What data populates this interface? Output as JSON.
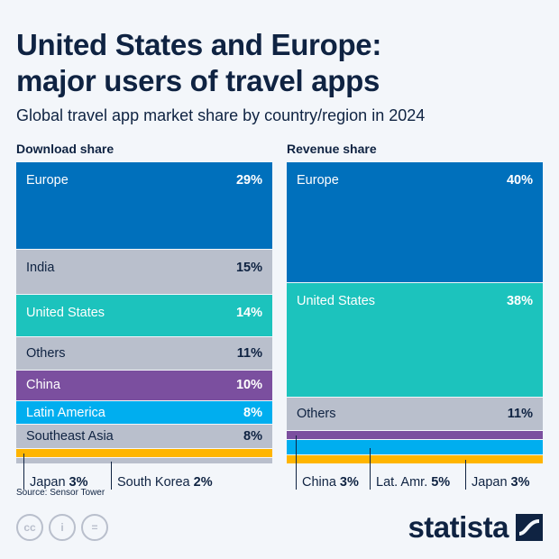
{
  "title_line1": "United States and Europe:",
  "title_line2": "major users of travel apps",
  "subtitle": "Global travel app market share by country/region in 2024",
  "source": "Source: Sensor Tower",
  "brand": "statista",
  "license_icons": [
    "cc-icon",
    "attribution-icon",
    "no-derivatives-icon"
  ],
  "colors": {
    "europe": "#0070bc",
    "gray": "#b9bfcc",
    "teal": "#1cc3bd",
    "purple": "#7b4f9f",
    "lightblue": "#00aeef",
    "yellow": "#ffb500",
    "text": "#0f2342"
  },
  "chart_data": [
    {
      "type": "stacked-bar",
      "title": "Download share",
      "unit": "%",
      "segments": [
        {
          "label": "Europe",
          "value": 29,
          "color": "#0070bc"
        },
        {
          "label": "India",
          "value": 15,
          "color": "#b9bfcc"
        },
        {
          "label": "United States",
          "value": 14,
          "color": "#1cc3bd"
        },
        {
          "label": "Others",
          "value": 11,
          "color": "#b9bfcc"
        },
        {
          "label": "China",
          "value": 10,
          "color": "#7b4f9f"
        },
        {
          "label": "Latin America",
          "value": 8,
          "color": "#00aeef"
        },
        {
          "label": "Southeast Asia",
          "value": 8,
          "color": "#b9bfcc"
        },
        {
          "label": "Japan",
          "value": 3,
          "color": "#ffb500"
        },
        {
          "label": "South Korea",
          "value": 2,
          "color": "#b9bfcc"
        }
      ]
    },
    {
      "type": "stacked-bar",
      "title": "Revenue share",
      "unit": "%",
      "segments": [
        {
          "label": "Europe",
          "value": 40,
          "color": "#0070bc"
        },
        {
          "label": "United States",
          "value": 38,
          "color": "#1cc3bd"
        },
        {
          "label": "Others",
          "value": 11,
          "color": "#b9bfcc"
        },
        {
          "label": "China",
          "value": 3,
          "color": "#7b4f9f"
        },
        {
          "label": "Lat. Amr.",
          "value": 5,
          "color": "#00aeef"
        },
        {
          "label": "Japan",
          "value": 3,
          "color": "#ffb500"
        }
      ]
    }
  ]
}
